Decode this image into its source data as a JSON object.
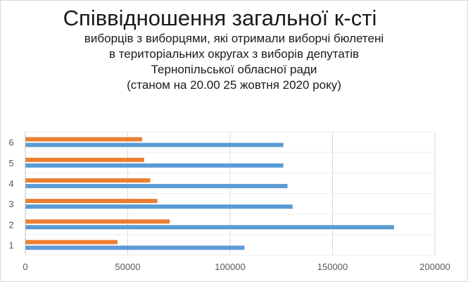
{
  "chart_data": {
    "type": "bar",
    "orientation": "horizontal",
    "title": "Співвідношення загальної к-сті",
    "subtitle_lines": [
      "виборців з виборцями, які отримали виборчі бюлетені",
      "в територіальних округах з виборів депутатів",
      "Тернопільської обласної ради",
      "(станом на 20.00 25 жовтня 2020 року)"
    ],
    "categories": [
      "1",
      "2",
      "3",
      "4",
      "5",
      "6"
    ],
    "series": [
      {
        "color": "#5b9bd5",
        "values": [
          107000,
          180000,
          130500,
          128000,
          126000,
          126000
        ]
      },
      {
        "color": "#ed7d31",
        "values": [
          45000,
          70500,
          64500,
          61000,
          58000,
          57000
        ]
      }
    ],
    "xlim": [
      0,
      200000
    ],
    "xticks": [
      "0",
      "50000",
      "100000",
      "150000",
      "200000"
    ],
    "grid": true,
    "legend": "none"
  }
}
